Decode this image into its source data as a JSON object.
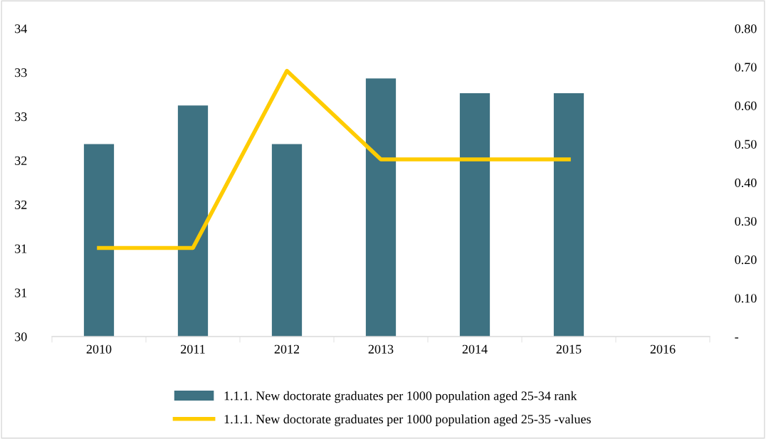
{
  "chart_data": {
    "type": "bar",
    "categories": [
      "2010",
      "2011",
      "2012",
      "2013",
      "2014",
      "2015",
      "2016"
    ],
    "series": [
      {
        "name": "1.1.1. New doctorate graduates per 1000 population aged 25-34 rank",
        "color": "#3e7282",
        "values": [
          32.5,
          33.0,
          32.5,
          33.35,
          33.16,
          33.16,
          null
        ]
      },
      {
        "name": "1.1.1. New doctorate graduates per 1000 population aged 25-35 -values",
        "type": "line",
        "axis": "y2",
        "color": "#ffcc00",
        "values": [
          0.23,
          0.23,
          0.69,
          0.46,
          0.46,
          0.46,
          null
        ]
      }
    ],
    "ylim": [
      30,
      34
    ],
    "yticks": [
      30,
      {
        "value": 30.571,
        "label": "31"
      },
      {
        "value": 31.143,
        "label": "31"
      },
      {
        "value": 31.714,
        "label": "32"
      },
      {
        "value": 32.286,
        "label": "32"
      },
      {
        "value": 32.857,
        "label": "33"
      },
      {
        "value": 33.429,
        "label": "33"
      },
      34
    ],
    "y2lim": [
      0,
      0.8
    ],
    "y2ticks": [
      {
        "value": 0,
        "label": "-"
      },
      {
        "value": 0.1,
        "label": "0.10"
      },
      {
        "value": 0.2,
        "label": "0.20"
      },
      {
        "value": 0.3,
        "label": "0.30"
      },
      {
        "value": 0.4,
        "label": "0.40"
      },
      {
        "value": 0.5,
        "label": "0.50"
      },
      {
        "value": 0.6,
        "label": "0.60"
      },
      {
        "value": 0.7,
        "label": "0.70"
      },
      {
        "value": 0.8,
        "label": "0.80"
      }
    ],
    "grid": false,
    "legend": "bottom"
  }
}
